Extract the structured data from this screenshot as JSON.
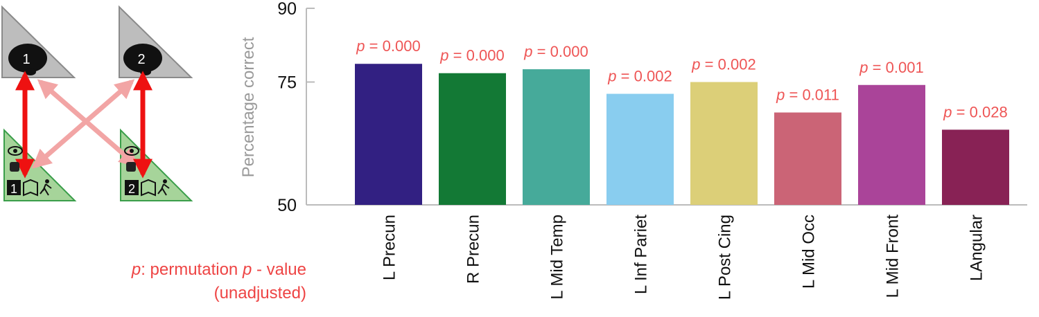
{
  "schematic": {
    "node_labels": [
      "1",
      "2"
    ],
    "book_labels": [
      "1",
      "2"
    ],
    "colors": {
      "top_triangle": "#bdbdbd",
      "bottom_triangle": "#a6d49a",
      "strong_arrow": "#ee1111",
      "weak_arrow": "#f2a5a5"
    }
  },
  "footnote": {
    "p_symbol": "p",
    "line1_rest": ": permutation ",
    "line1_p": "p",
    "line1_end": " - value",
    "line2": "(unadjusted)"
  },
  "chart_data": {
    "type": "bar",
    "title": "",
    "xlabel": "",
    "ylabel": "Percentage correct",
    "ylim": [
      50,
      90
    ],
    "yticks": [
      50,
      75,
      90
    ],
    "categories": [
      "L Precun",
      "R Precun",
      "L Mid Temp",
      "L Inf Pariet",
      "L Post Cing",
      "L Mid Occ",
      "L Mid Front",
      "LAngular"
    ],
    "values": [
      78.7,
      76.8,
      77.6,
      72.6,
      75.0,
      68.8,
      74.4,
      65.3
    ],
    "p_labels": [
      "p = 0.000",
      "p = 0.000",
      "p = 0.000",
      "p = 0.002",
      "p = 0.002",
      "p = 0.011",
      "p = 0.001",
      "p = 0.028"
    ],
    "colors": [
      "#322082",
      "#137935",
      "#46aa9a",
      "#89cdef",
      "#dccf78",
      "#cb6476",
      "#aa4499",
      "#882255"
    ],
    "annotation_color": "#ee5555",
    "axis_color": "#bbbbbb",
    "grid": false
  }
}
